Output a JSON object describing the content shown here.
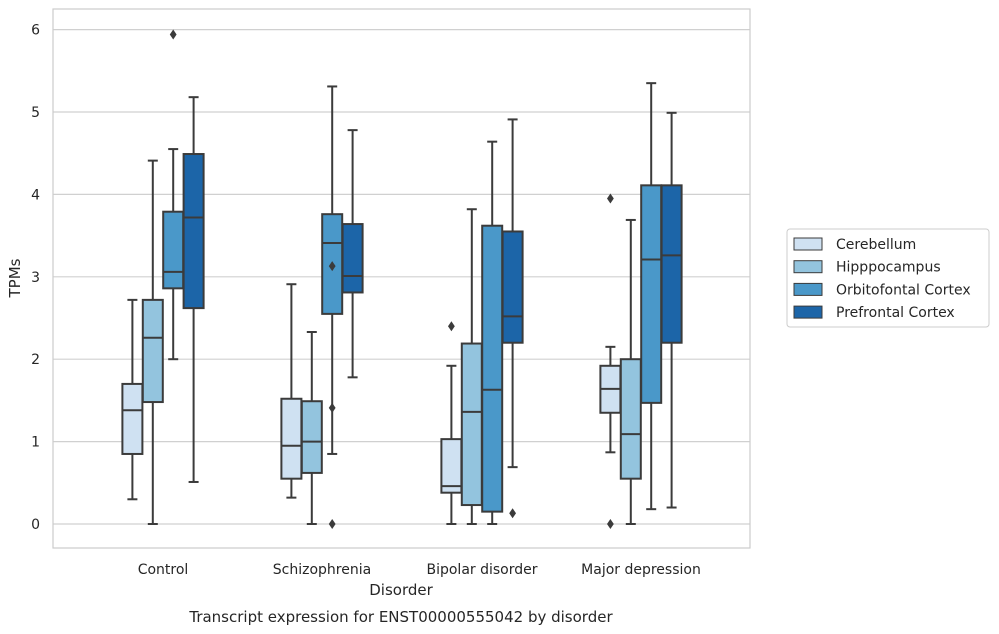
{
  "chart_data": {
    "type": "box",
    "title": "Transcript expression for ENST00000555042 by disorder",
    "xlabel": "Disorder",
    "ylabel": "TPMs",
    "ylim": [
      -0.3,
      6.25
    ],
    "yticks": [
      0,
      1,
      2,
      3,
      4,
      5,
      6
    ],
    "grid": true,
    "legend_placement": "right",
    "categories": [
      "Control",
      "Schizophrenia",
      "Bipolar disorder",
      "Major depression"
    ],
    "series": [
      {
        "name": "Cerebellum",
        "color": "#cfe1f2",
        "boxes": [
          {
            "whisker_low": 0.3,
            "q1": 0.85,
            "median": 1.38,
            "q3": 1.7,
            "whisker_high": 2.72,
            "outliers": []
          },
          {
            "whisker_low": 0.32,
            "q1": 0.55,
            "median": 0.95,
            "q3": 1.52,
            "whisker_high": 2.91,
            "outliers": []
          },
          {
            "whisker_low": 0.0,
            "q1": 0.38,
            "median": 0.46,
            "q3": 1.03,
            "whisker_high": 1.92,
            "outliers": [
              2.4
            ]
          },
          {
            "whisker_low": 0.87,
            "q1": 1.35,
            "median": 1.64,
            "q3": 1.92,
            "whisker_high": 2.15,
            "outliers": [
              0.0,
              3.95
            ]
          }
        ]
      },
      {
        "name": "Hipppocampus",
        "color": "#93c4de",
        "boxes": [
          {
            "whisker_low": 0.0,
            "q1": 1.48,
            "median": 2.26,
            "q3": 2.72,
            "whisker_high": 4.41,
            "outliers": []
          },
          {
            "whisker_low": 0.0,
            "q1": 0.62,
            "median": 1.0,
            "q3": 1.49,
            "whisker_high": 2.33,
            "outliers": []
          },
          {
            "whisker_low": 0.0,
            "q1": 0.23,
            "median": 1.36,
            "q3": 2.19,
            "whisker_high": 3.82,
            "outliers": []
          },
          {
            "whisker_low": 0.0,
            "q1": 0.55,
            "median": 1.09,
            "q3": 2.0,
            "whisker_high": 3.69,
            "outliers": []
          }
        ]
      },
      {
        "name": "Orbitofontal Cortex",
        "color": "#4a98c9",
        "boxes": [
          {
            "whisker_low": 2.0,
            "q1": 2.86,
            "median": 3.06,
            "q3": 3.79,
            "whisker_high": 4.55,
            "outliers": [
              5.94
            ]
          },
          {
            "whisker_low": 0.85,
            "q1": 2.55,
            "median": 3.41,
            "q3": 3.76,
            "whisker_high": 5.31,
            "outliers": [
              3.13,
              1.41,
              0.0
            ]
          },
          {
            "whisker_low": 0.0,
            "q1": 0.15,
            "median": 1.63,
            "q3": 3.62,
            "whisker_high": 4.64,
            "outliers": []
          },
          {
            "whisker_low": 0.18,
            "q1": 1.47,
            "median": 3.21,
            "q3": 4.11,
            "whisker_high": 5.35,
            "outliers": []
          }
        ]
      },
      {
        "name": "Prefrontal Cortex",
        "color": "#1c65a8",
        "boxes": [
          {
            "whisker_low": 0.51,
            "q1": 2.62,
            "median": 3.72,
            "q3": 4.49,
            "whisker_high": 5.18,
            "outliers": []
          },
          {
            "whisker_low": 1.78,
            "q1": 2.81,
            "median": 3.01,
            "q3": 3.64,
            "whisker_high": 4.78,
            "outliers": []
          },
          {
            "whisker_low": 0.69,
            "q1": 2.2,
            "median": 2.52,
            "q3": 3.55,
            "whisker_high": 4.91,
            "outliers": [
              0.13
            ]
          },
          {
            "whisker_low": 0.2,
            "q1": 2.2,
            "median": 3.26,
            "q3": 4.11,
            "whisker_high": 4.99,
            "outliers": []
          }
        ]
      }
    ]
  }
}
